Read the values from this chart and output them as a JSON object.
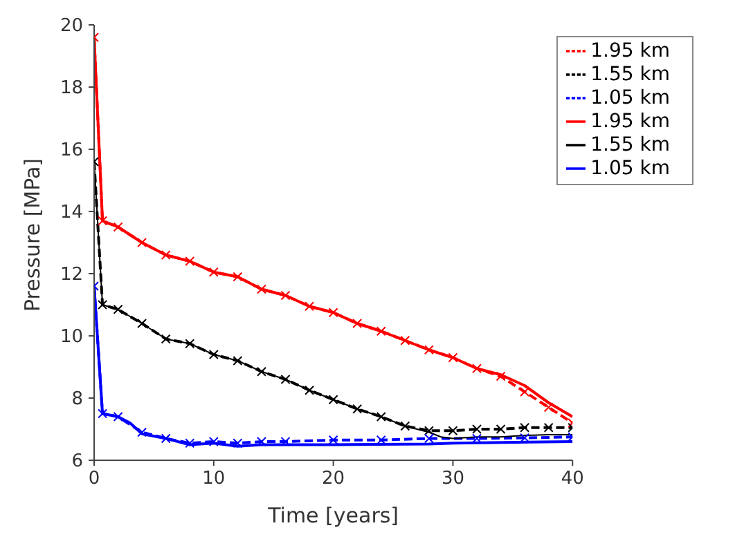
{
  "chart_data": {
    "type": "line",
    "xlabel": "Time [years]",
    "ylabel": "Pressure [MPa]",
    "xlim": [
      0,
      40
    ],
    "xticks": [
      0,
      10,
      20,
      30,
      40
    ],
    "ylim": [
      6,
      20
    ],
    "yticks": [
      6,
      8,
      10,
      12,
      14,
      16,
      18,
      20
    ],
    "legend": "top right",
    "series": [
      {
        "name": "1.95 km",
        "color": "#ff0000",
        "line_style": "dashed",
        "marker": "cross",
        "x": [
          0,
          0.7,
          2,
          4,
          6,
          8,
          10,
          12,
          14,
          16,
          18,
          20,
          22,
          24,
          26,
          28,
          30,
          32,
          34,
          36,
          38,
          40
        ],
        "values": [
          19.6,
          13.7,
          13.5,
          13.0,
          12.6,
          12.4,
          12.05,
          11.9,
          11.5,
          11.3,
          10.95,
          10.75,
          10.4,
          10.15,
          9.85,
          9.55,
          9.3,
          8.95,
          8.7,
          8.2,
          7.7,
          7.2
        ]
      },
      {
        "name": "1.55 km",
        "color": "#000000",
        "line_style": "dashed",
        "marker": "cross",
        "x": [
          0,
          0.7,
          2,
          4,
          6,
          8,
          10,
          12,
          14,
          16,
          18,
          20,
          22,
          24,
          26,
          28,
          30,
          32,
          34,
          36,
          38,
          40
        ],
        "values": [
          15.6,
          11.0,
          10.85,
          10.4,
          9.9,
          9.75,
          9.4,
          9.2,
          8.85,
          8.6,
          8.25,
          7.95,
          7.65,
          7.4,
          7.1,
          6.95,
          6.95,
          7.0,
          7.0,
          7.05,
          7.05,
          7.05
        ]
      },
      {
        "name": "1.05 km",
        "color": "#0000ff",
        "line_style": "dashed",
        "marker": "cross",
        "x": [
          0,
          0.7,
          2,
          4,
          6,
          8,
          10,
          12,
          14,
          16,
          20,
          24,
          28,
          32,
          36,
          40
        ],
        "values": [
          11.6,
          7.5,
          7.4,
          6.9,
          6.7,
          6.55,
          6.6,
          6.55,
          6.6,
          6.6,
          6.65,
          6.65,
          6.7,
          6.7,
          6.72,
          6.75
        ]
      },
      {
        "name": "1.95 km",
        "color": "#ff0000",
        "line_style": "solid",
        "marker": "none",
        "x": [
          0,
          0.7,
          2,
          4,
          6,
          8,
          10,
          12,
          14,
          16,
          18,
          20,
          22,
          24,
          26,
          28,
          30,
          32,
          34,
          36,
          38,
          40
        ],
        "values": [
          19.6,
          13.7,
          13.5,
          13.0,
          12.6,
          12.4,
          12.05,
          11.9,
          11.5,
          11.3,
          10.95,
          10.75,
          10.4,
          10.15,
          9.85,
          9.55,
          9.3,
          8.95,
          8.75,
          8.4,
          7.85,
          7.4
        ]
      },
      {
        "name": "1.55 km",
        "color": "#000000",
        "line_style": "solid",
        "marker": "none",
        "x": [
          0,
          0.7,
          2,
          4,
          6,
          8,
          10,
          12,
          14,
          16,
          18,
          20,
          22,
          24,
          26,
          28,
          29,
          30,
          32,
          34,
          36,
          38,
          40
        ],
        "values": [
          15.6,
          11.0,
          10.85,
          10.4,
          9.9,
          9.75,
          9.4,
          9.2,
          8.85,
          8.6,
          8.25,
          7.95,
          7.65,
          7.4,
          7.1,
          6.9,
          6.75,
          6.7,
          6.75,
          6.75,
          6.8,
          6.82,
          6.82
        ]
      },
      {
        "name": "1.05 km",
        "color": "#0000ff",
        "line_style": "solid",
        "marker": "none",
        "x": [
          0,
          0.7,
          2,
          3,
          4,
          6,
          8,
          10,
          12,
          14,
          20,
          28,
          30,
          40
        ],
        "values": [
          11.6,
          7.5,
          7.4,
          7.2,
          6.85,
          6.7,
          6.5,
          6.55,
          6.45,
          6.5,
          6.5,
          6.52,
          6.55,
          6.6
        ]
      }
    ]
  }
}
